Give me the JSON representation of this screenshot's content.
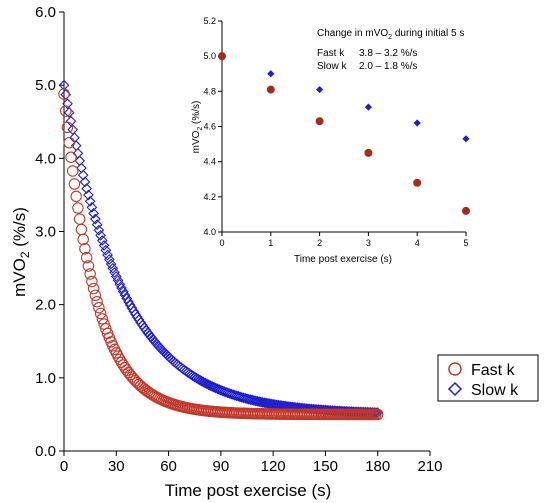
{
  "chart_data": [
    {
      "type": "scatter",
      "xlabel": "Time post exercise  (s)",
      "ylabel_main": "mVO",
      "ylabel_sub": "2",
      "ylabel_tail": " (%/s)",
      "xlim": [
        0,
        210
      ],
      "ylim": [
        0,
        6
      ],
      "xticks": [
        "0",
        "30",
        "60",
        "90",
        "120",
        "150",
        "180",
        "210"
      ],
      "yticks": [
        "0.0",
        "1.0",
        "2.0",
        "3.0",
        "4.0",
        "5.0",
        "6.0"
      ],
      "legend": {
        "position": "right",
        "entries": [
          "Fast k",
          "Slow k"
        ]
      },
      "series": [
        {
          "name": "Fast k",
          "color": "#c0392b",
          "marker": "circle",
          "y0": 4.88,
          "plateau": 0.5,
          "k": 0.055,
          "x_start": 0,
          "x_end": 180,
          "step": 1
        },
        {
          "name": "Slow k",
          "color": "#1f1fcc",
          "marker": "diamond",
          "y0": 5.0,
          "plateau": 0.5,
          "k": 0.029,
          "x_start": 0,
          "x_end": 180,
          "step": 1
        }
      ]
    },
    {
      "type": "scatter",
      "title_main": "Change in mVO",
      "title_sub": "2",
      "title_tail": "  during initial 5 s",
      "notes": [
        {
          "label": "Fast k",
          "value": "3.8 – 3.2 %/s"
        },
        {
          "label": "Slow k",
          "value": "2.0 – 1.8 %/s"
        }
      ],
      "xlabel": "Time post exercise (s)",
      "ylabel_main": "mVO",
      "ylabel_sub": "2",
      "ylabel_tail": " (%/s)",
      "xlim": [
        0,
        5
      ],
      "ylim": [
        4.0,
        5.2
      ],
      "xticks": [
        "0",
        "1",
        "2",
        "3",
        "4",
        "5"
      ],
      "yticks": [
        "4.0",
        "4.2",
        "4.4",
        "4.6",
        "4.8",
        "5.0",
        "5.2"
      ],
      "series": [
        {
          "name": "Fast k",
          "color": "#a52a1a",
          "marker": "circle",
          "x": [
            0,
            1,
            2,
            3,
            4,
            5
          ],
          "y": [
            5.0,
            4.81,
            4.63,
            4.45,
            4.28,
            4.12
          ]
        },
        {
          "name": "Slow k",
          "color": "#1f1fcc",
          "marker": "diamond",
          "x": [
            1,
            2,
            3,
            4,
            5
          ],
          "y": [
            4.9,
            4.81,
            4.71,
            4.62,
            4.53
          ]
        }
      ]
    }
  ]
}
